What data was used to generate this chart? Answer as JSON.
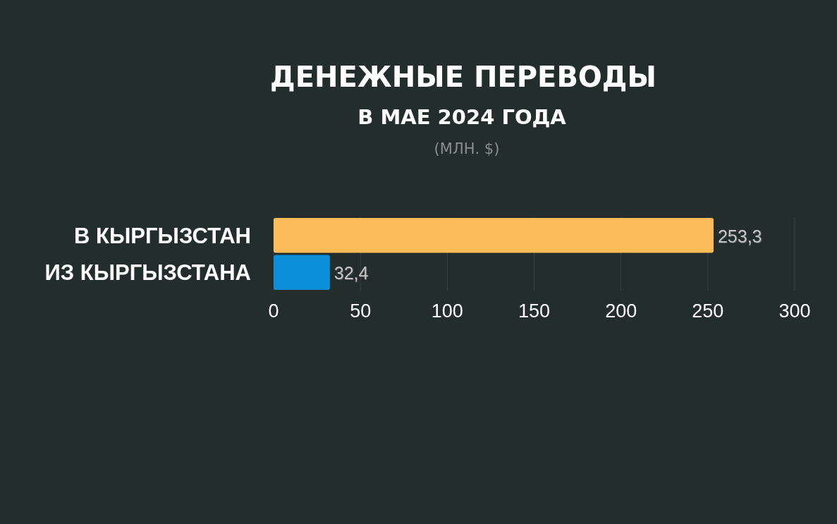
{
  "chart_data": {
    "type": "bar",
    "orientation": "horizontal",
    "title": "ДЕНЕЖНЫЕ ПЕРЕВОДЫ",
    "subtitle": "В МАЕ 2024 ГОДА",
    "annotations": [
      "(МЛН. $)"
    ],
    "categories": [
      "В КЫРГЫЗСТАН",
      "ИЗ КЫРГЫЗСТАНА"
    ],
    "values": [
      253.3,
      32.4
    ],
    "colors": [
      "#fdbb5a",
      "#0a8fd8"
    ],
    "value_labels": [
      "253,3",
      "32,4"
    ],
    "xlim": [
      0,
      300
    ],
    "xticks": [
      0,
      50,
      100,
      150,
      200,
      250,
      300
    ],
    "grid": "x"
  }
}
